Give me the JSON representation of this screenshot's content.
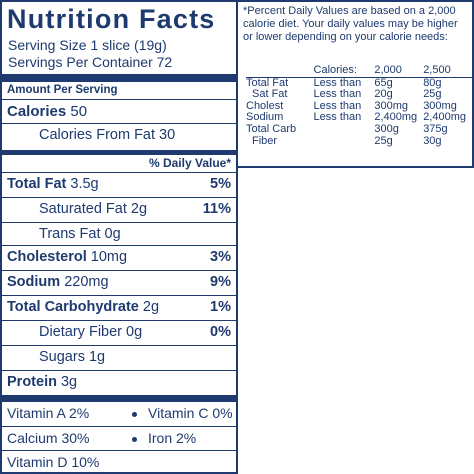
{
  "label": {
    "title": "Nutrition Facts",
    "serving_size": "Serving Size 1 slice (19g)",
    "servings_per_container": "Servings Per Container 72",
    "amount_per_serving": "Amount Per Serving",
    "calories_label": "Calories",
    "calories_value": "50",
    "calories_from_fat": "Calories From Fat 30",
    "daily_value_header": "% Daily Value*",
    "nutrients": [
      {
        "name": "Total Fat",
        "amount": "3.5g",
        "dv": "5%"
      },
      {
        "name": "Saturated Fat 2g",
        "amount": "",
        "dv": "11%"
      },
      {
        "name": "Trans Fat 0g",
        "amount": "",
        "dv": ""
      },
      {
        "name": "Cholesterol",
        "amount": "10mg",
        "dv": "3%"
      },
      {
        "name": "Sodium",
        "amount": "220mg",
        "dv": "9%"
      },
      {
        "name": "Total Carbohydrate",
        "amount": "2g",
        "dv": "1%"
      },
      {
        "name": "Dietary Fiber 0g",
        "amount": "",
        "dv": "0%"
      },
      {
        "name": "Sugars 1g",
        "amount": "",
        "dv": ""
      },
      {
        "name": "Protein",
        "amount": "3g",
        "dv": ""
      }
    ],
    "vitamins": {
      "vitamin_a": "Vitamin A 2%",
      "vitamin_c": "Vitamin C 0%",
      "calcium": "Calcium 30%",
      "iron": "Iron 2%",
      "vitamin_d": "Vitamin D 10%"
    }
  },
  "footnote": {
    "text": "*Percent Daily Values are based on a 2,000 calorie diet. Your daily values may be higher or lower depending on your calorie needs:",
    "header": [
      "",
      "Calories:",
      "2,000",
      "2,500"
    ],
    "rows": [
      [
        "Total Fat",
        "Less than",
        "65g",
        "80g"
      ],
      [
        "Sat Fat",
        "Less than",
        "20g",
        "25g"
      ],
      [
        "Cholest",
        "Less than",
        "300mg",
        "300mg"
      ],
      [
        "Sodium",
        "Less than",
        "2,400mg",
        "2,400mg"
      ],
      [
        "Total Carb",
        "",
        "300g",
        "375g"
      ],
      [
        "Fiber",
        "",
        "25g",
        "30g"
      ]
    ]
  },
  "colors": {
    "ink": "#1e3a6e",
    "background": "#ffffff"
  }
}
